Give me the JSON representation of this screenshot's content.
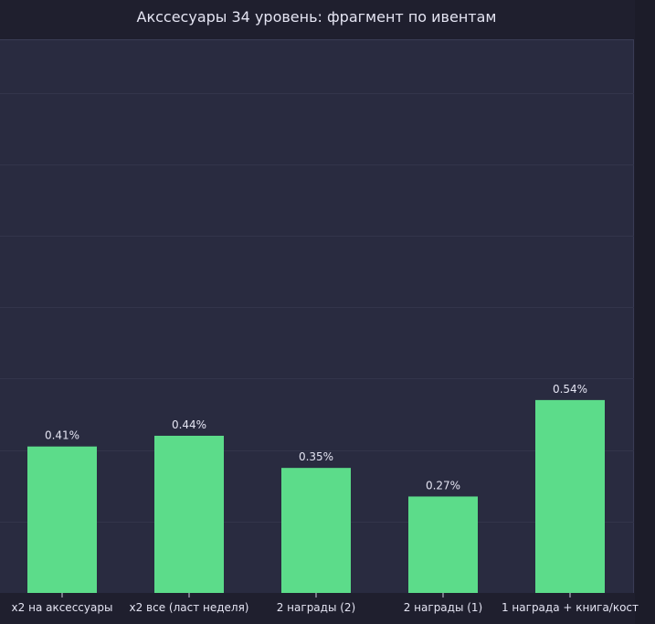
{
  "chart_data": {
    "type": "bar",
    "title": "Акссесуары 34 уровень: фрагмент по ивентам",
    "xlabel": "",
    "ylabel": "",
    "categories": [
      "x2 на аксессуары",
      "x2 все (ласт неделя)",
      "2 награды (2)",
      "2 награды (1)",
      "1 награда + книга/кост"
    ],
    "values": [
      0.41,
      0.44,
      0.35,
      0.27,
      0.54
    ],
    "value_labels": [
      "0.41%",
      "0.44%",
      "0.35%",
      "0.27%",
      "0.54%"
    ],
    "ylim": [
      0,
      1.55
    ],
    "grid": true,
    "colors": {
      "bar": "#5cdc8a",
      "plot_bg": "#292b40",
      "page_bg": "#1f1f2e",
      "grid": "#33354b",
      "text": "#e4e4f2"
    }
  }
}
